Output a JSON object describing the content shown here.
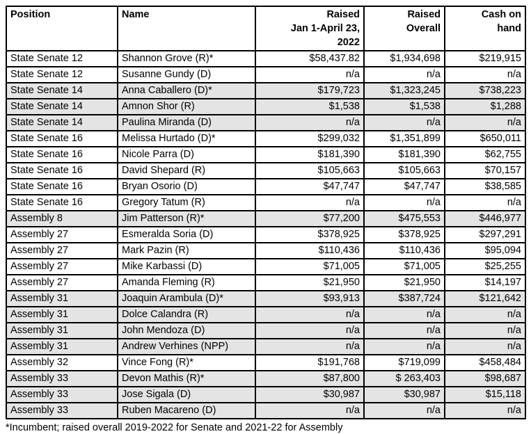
{
  "page": {
    "background": "#ffffff"
  },
  "table": {
    "border_color": "#000000",
    "shade_color": "#e4e4e4",
    "header": {
      "position": "Position",
      "name": "Name",
      "raised_period": "Raised\nJan 1-April 23,\n2022",
      "raised_overall": "Raised\nOverall",
      "cash_on_hand": "Cash on\nhand"
    },
    "rows": [
      {
        "position": "State Senate 12",
        "name": "Shannon Grove (R)*",
        "raised_period": "$58,437.82",
        "raised_overall": "$1,934,698",
        "cash_on_hand": "$219,915",
        "shaded": false
      },
      {
        "position": "State Senate 12",
        "name": "Susanne Gundy (D)",
        "raised_period": "n/a",
        "raised_overall": "n/a",
        "cash_on_hand": "n/a",
        "shaded": false
      },
      {
        "position": "State Senate 14",
        "name": "Anna Caballero (D)*",
        "raised_period": "$179,723",
        "raised_overall": "$1,323,245",
        "cash_on_hand": "$738,223",
        "shaded": true
      },
      {
        "position": "State Senate 14",
        "name": "Amnon Shor (R)",
        "raised_period": "$1,538",
        "raised_overall": "$1,538",
        "cash_on_hand": "$1,288",
        "shaded": true
      },
      {
        "position": "State Senate 14",
        "name": "Paulina Miranda (D)",
        "raised_period": "n/a",
        "raised_overall": "n/a",
        "cash_on_hand": "n/a",
        "shaded": true
      },
      {
        "position": "State Senate 16",
        "name": "Melissa Hurtado (D)*",
        "raised_period": "$299,032",
        "raised_overall": "$1,351,899",
        "cash_on_hand": "$650,011",
        "shaded": false
      },
      {
        "position": "State Senate 16",
        "name": "Nicole Parra (D)",
        "raised_period": "$181,390",
        "raised_overall": "$181,390",
        "cash_on_hand": "$62,755",
        "shaded": false
      },
      {
        "position": "State Senate 16",
        "name": "David Shepard (R)",
        "raised_period": "$105,663",
        "raised_overall": "$105,663",
        "cash_on_hand": "$70,157",
        "shaded": false
      },
      {
        "position": "State Senate 16",
        "name": "Bryan Osorio (D)",
        "raised_period": "$47,747",
        "raised_overall": "$47,747",
        "cash_on_hand": "$38,585",
        "shaded": false
      },
      {
        "position": "State Senate 16",
        "name": "Gregory Tatum (R)",
        "raised_period": "n/a",
        "raised_overall": "n/a",
        "cash_on_hand": "n/a",
        "shaded": false
      },
      {
        "position": "Assembly 8",
        "name": "Jim Patterson (R)*",
        "raised_period": "$77,200",
        "raised_overall": "$475,553",
        "cash_on_hand": "$446,977",
        "shaded": true
      },
      {
        "position": "Assembly 27",
        "name": "Esmeralda Soria (D)",
        "raised_period": "$378,925",
        "raised_overall": "$378,925",
        "cash_on_hand": "$297,291",
        "shaded": false
      },
      {
        "position": "Assembly 27",
        "name": "Mark Pazin (R)",
        "raised_period": "$110,436",
        "raised_overall": "$110,436",
        "cash_on_hand": "$95,094",
        "shaded": false
      },
      {
        "position": "Assembly 27",
        "name": "Mike Karbassi (D)",
        "raised_period": "$71,005",
        "raised_overall": "$71,005",
        "cash_on_hand": "$25,255",
        "shaded": false
      },
      {
        "position": "Assembly 27",
        "name": "Amanda Fleming (R)",
        "raised_period": "$21,950",
        "raised_overall": "$21,950",
        "cash_on_hand": "$14,197",
        "shaded": false
      },
      {
        "position": "Assembly 31",
        "name": "Joaquin Arambula (D)*",
        "raised_period": "$93,913",
        "raised_overall": "$387,724",
        "cash_on_hand": "$121,642",
        "shaded": true
      },
      {
        "position": "Assembly 31",
        "name": "Dolce Calandra (R)",
        "raised_period": "n/a",
        "raised_overall": "n/a",
        "cash_on_hand": "n/a",
        "shaded": true
      },
      {
        "position": "Assembly 31",
        "name": "John Mendoza (D)",
        "raised_period": "n/a",
        "raised_overall": "n/a",
        "cash_on_hand": "n/a",
        "shaded": true
      },
      {
        "position": "Assembly 31",
        "name": "Andrew Verhines (NPP)",
        "raised_period": "n/a",
        "raised_overall": "n/a",
        "cash_on_hand": "n/a",
        "shaded": true
      },
      {
        "position": "Assembly 32",
        "name": "Vince Fong (R)*",
        "raised_period": "$191,768",
        "raised_overall": "$719,099",
        "cash_on_hand": "$458,484",
        "shaded": false
      },
      {
        "position": "Assembly 33",
        "name": "Devon Mathis (R)*",
        "raised_period": "$87,800",
        "raised_overall": "$ 263,403",
        "cash_on_hand": "$98,687",
        "shaded": true
      },
      {
        "position": "Assembly 33",
        "name": "Jose Sigala (D)",
        "raised_period": "$30,987",
        "raised_overall": "$30,987",
        "cash_on_hand": "$15,118",
        "shaded": true
      },
      {
        "position": "Assembly 33",
        "name": "Ruben Macareno (D)",
        "raised_period": "n/a",
        "raised_overall": "n/a",
        "cash_on_hand": "n/a",
        "shaded": true
      }
    ],
    "footnote": "*Incumbent; raised overall 2019-2022 for Senate and 2021-22 for Assembly"
  }
}
